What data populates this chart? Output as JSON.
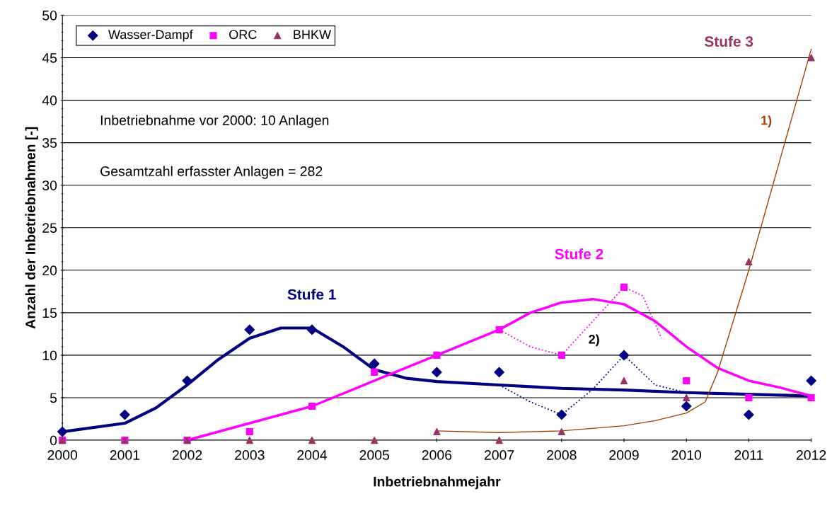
{
  "chart_data": {
    "type": "scatter",
    "xlabel": "Inbetriebnahmejahr",
    "ylabel": "Anzahl der Inbetriebnahmen [-]",
    "x": [
      2000,
      2001,
      2002,
      2003,
      2004,
      2005,
      2006,
      2007,
      2008,
      2009,
      2010,
      2011,
      2012
    ],
    "xlim": [
      2000,
      2012
    ],
    "xticks": [
      2000,
      2001,
      2002,
      2003,
      2004,
      2005,
      2006,
      2007,
      2008,
      2009,
      2010,
      2011,
      2012
    ],
    "ylim": [
      0,
      50
    ],
    "yticks": [
      0,
      5,
      10,
      15,
      20,
      25,
      30,
      35,
      40,
      45,
      50
    ],
    "grid": "y",
    "legend": "top left",
    "series": [
      {
        "name": "Wasser-Dampf",
        "color": "#000080",
        "marker": "diamond",
        "values": [
          1,
          3,
          7,
          13,
          13,
          9,
          8,
          8,
          3,
          10,
          4,
          3,
          7
        ]
      },
      {
        "name": "ORC",
        "color": "#ff00ff",
        "marker": "square",
        "values": [
          0,
          0,
          0,
          1,
          4,
          8,
          10,
          13,
          10,
          18,
          7,
          5,
          5
        ]
      },
      {
        "name": "BHKW",
        "color": "#993366",
        "marker": "triangle",
        "values": [
          0,
          0,
          0,
          0,
          0,
          0,
          1,
          0,
          1,
          7,
          5,
          21,
          45
        ]
      },
      {
        "type": "line",
        "color": "#000080",
        "line_style": "solid",
        "x": [
          2000,
          2001,
          2001.5,
          2002,
          2002.5,
          2003,
          2003.5,
          2004,
          2004.5,
          2005,
          2005.5,
          2006,
          2007,
          2008,
          2009,
          2010,
          2011,
          2012
        ],
        "values": [
          1,
          2,
          3.8,
          6.5,
          9.5,
          12,
          13.2,
          13.2,
          11,
          8.3,
          7.3,
          6.9,
          6.5,
          6.1,
          5.9,
          5.6,
          5.4,
          5.2
        ]
      },
      {
        "type": "line",
        "color": "#ff00ff",
        "line_style": "solid",
        "x": [
          2002,
          2003,
          2004,
          2005,
          2006,
          2007,
          2007.5,
          2008,
          2008.5,
          2009,
          2009.5,
          2010,
          2010.5,
          2011,
          2011.5,
          2012
        ],
        "values": [
          0,
          2,
          4,
          7,
          10,
          13,
          15,
          16.2,
          16.6,
          16,
          14,
          11,
          8.5,
          7,
          6.2,
          5.2
        ]
      },
      {
        "type": "line",
        "color": "#ff00ff",
        "line_style": "dotted",
        "x": [
          2007,
          2007.5,
          2008,
          2008.5,
          2009,
          2009.3,
          2009.6
        ],
        "values": [
          13,
          11,
          10,
          14,
          18,
          17,
          12
        ]
      },
      {
        "type": "line",
        "color": "#000080",
        "line_style": "dotted",
        "x": [
          2007,
          2007.5,
          2008,
          2008.5,
          2009,
          2009.5,
          2010
        ],
        "values": [
          6.5,
          4.5,
          3,
          6,
          10,
          6.5,
          5.6
        ]
      },
      {
        "type": "line",
        "color": "#a0400a",
        "line_style": "solid",
        "x": [
          2006,
          2007,
          2008,
          2009,
          2009.5,
          2010,
          2010.3,
          2010.5,
          2011,
          2011.5,
          2012
        ],
        "values": [
          1.1,
          0.9,
          1.1,
          1.7,
          2.3,
          3.2,
          4.5,
          8,
          20,
          33,
          46
        ]
      }
    ],
    "annotations": [
      "Stufe 1",
      "Stufe 2",
      "Stufe 3",
      "1)",
      "2)",
      "Inbetriebnahme vor 2000: 10 Anlagen",
      "Gesamtzahl erfasster Anlagen = 282"
    ]
  }
}
